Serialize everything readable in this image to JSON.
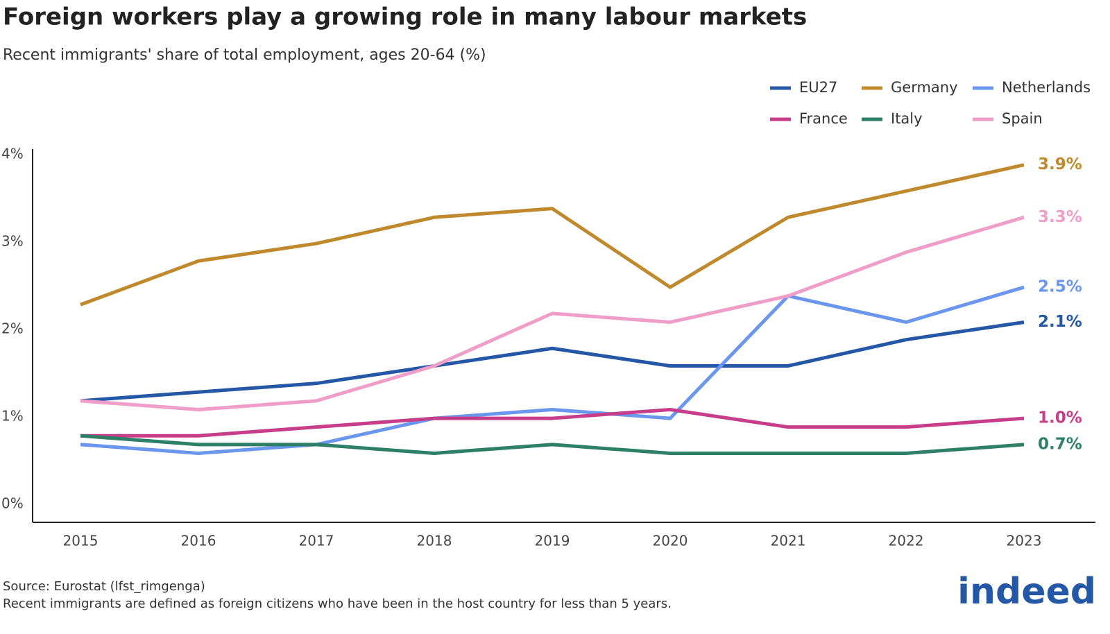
{
  "chart_data": {
    "type": "line",
    "title": "Foreign workers play a growing role in many labour markets",
    "subtitle": "Recent immigrants' share of total employment, ages 20-64 (%)",
    "categories": [
      "2015",
      "2016",
      "2017",
      "2018",
      "2019",
      "2020",
      "2021",
      "2022",
      "2023"
    ],
    "ylim": [
      -0.19,
      4.08
    ],
    "yticks": [
      {
        "value": 0,
        "label": "0%"
      },
      {
        "value": 1,
        "label": "1%"
      },
      {
        "value": 2,
        "label": "2%"
      },
      {
        "value": 3,
        "label": "3%"
      },
      {
        "value": 4,
        "label": "4%"
      }
    ],
    "grid": false,
    "legend": "top-right",
    "series": [
      {
        "name": "EU27",
        "color": "#2557a7",
        "values": [
          1.2,
          1.3,
          1.4,
          1.6,
          1.8,
          1.6,
          1.6,
          1.9,
          2.1
        ],
        "value_labels": [
          null,
          null,
          null,
          null,
          null,
          null,
          null,
          null,
          "2.1%"
        ]
      },
      {
        "name": "Germany",
        "color": "#c1892e",
        "values": [
          2.3,
          2.8,
          3.0,
          3.3,
          3.4,
          2.5,
          3.3,
          3.6,
          3.9
        ],
        "value_labels": [
          null,
          null,
          null,
          null,
          null,
          null,
          null,
          null,
          "3.9%"
        ]
      },
      {
        "name": "Netherlands",
        "color": "#6b96ee",
        "values": [
          0.7,
          0.6,
          0.7,
          1.0,
          1.1,
          1.0,
          2.4,
          2.1,
          2.5
        ],
        "value_labels": [
          null,
          null,
          null,
          null,
          null,
          null,
          null,
          null,
          "2.5%"
        ]
      },
      {
        "name": "France",
        "color": "#c73d8a",
        "values": [
          0.8,
          0.8,
          0.9,
          1.0,
          1.0,
          1.1,
          0.9,
          0.9,
          1.0
        ],
        "value_labels": [
          null,
          null,
          null,
          null,
          null,
          null,
          null,
          null,
          "1.0%"
        ]
      },
      {
        "name": "Italy",
        "color": "#2d7f66",
        "values": [
          0.8,
          0.7,
          0.7,
          0.6,
          0.7,
          0.6,
          0.6,
          0.6,
          0.7
        ],
        "value_labels": [
          null,
          null,
          null,
          null,
          null,
          null,
          null,
          null,
          "0.7%"
        ]
      },
      {
        "name": "Spain",
        "color": "#ef9ec9",
        "values": [
          1.2,
          1.1,
          1.2,
          1.6,
          2.2,
          2.1,
          2.4,
          2.9,
          3.3
        ],
        "value_labels": [
          null,
          null,
          null,
          null,
          null,
          null,
          null,
          null,
          "3.3%"
        ]
      }
    ],
    "source": "Source: Eurostat (lfst_rimgenga)",
    "note": "Recent immigrants are defined as foreign citizens who have been in the host country for less than 5 years.",
    "logo": "indeed"
  }
}
